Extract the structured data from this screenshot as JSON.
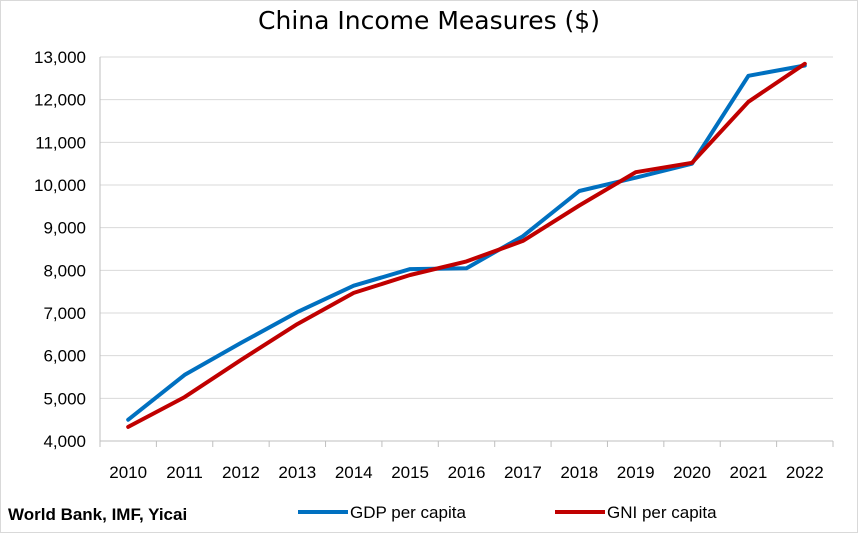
{
  "chart_data": {
    "type": "line",
    "title": "China Income Measures ($)",
    "source": "World Bank, IMF, Yicai",
    "x": [
      "2010",
      "2011",
      "2012",
      "2013",
      "2014",
      "2015",
      "2016",
      "2017",
      "2018",
      "2019",
      "2020",
      "2021",
      "2022"
    ],
    "y_ticks": [
      "4,000",
      "5,000",
      "6,000",
      "7,000",
      "8,000",
      "9,000",
      "10,000",
      "11,000",
      "12,000",
      "13,000"
    ],
    "ylim": [
      4000,
      13000
    ],
    "grid": true,
    "legend_position": "bottom",
    "series": [
      {
        "name": "GDP per capita",
        "color": "#0070c0",
        "values": [
          4500,
          5550,
          6300,
          7020,
          7640,
          8030,
          8050,
          8800,
          9860,
          10170,
          10500,
          12560,
          12800
        ]
      },
      {
        "name": "GNI per capita",
        "color": "#c00000",
        "values": [
          4330,
          5030,
          5900,
          6740,
          7470,
          7890,
          8210,
          8690,
          9520,
          10300,
          10520,
          11950,
          12840
        ]
      }
    ]
  }
}
